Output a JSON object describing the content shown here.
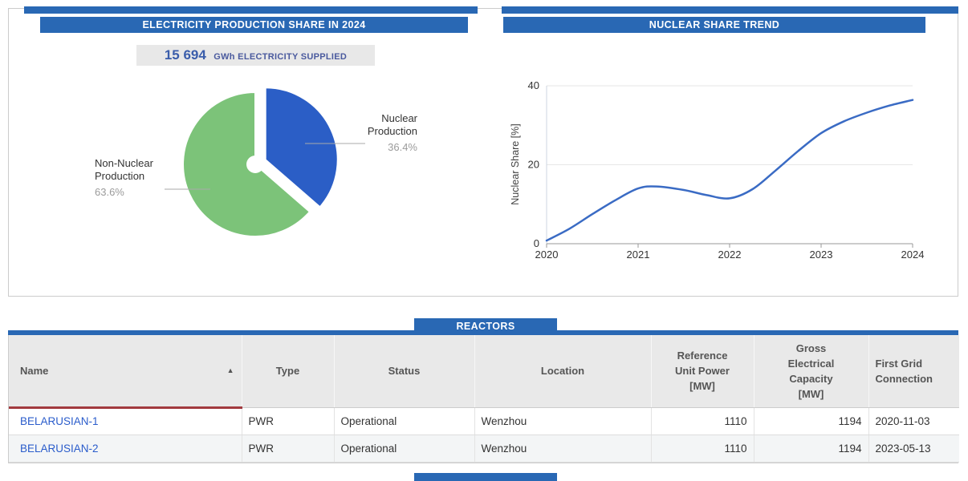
{
  "theme": {
    "header_blue": "#2968b4",
    "link_blue": "#2a5ccb",
    "pie_nuclear_color": "#2b5ec6",
    "pie_non_nuclear_color": "#7cc379",
    "trend_line_color": "#3a6bc4",
    "sorted_column_underline": "#a23a3f",
    "supplied_box_bg": "#e8e8e8"
  },
  "production_panel": {
    "title": "ELECTRICITY PRODUCTION SHARE IN 2024",
    "supplied_value": "15 694",
    "supplied_unit": "GWh ELECTRICITY SUPPLIED"
  },
  "trend_panel": {
    "title": "NUCLEAR SHARE TREND"
  },
  "chart_data": [
    {
      "type": "pie",
      "title": "ELECTRICITY PRODUCTION SHARE IN 2024",
      "subtitle": "15 694 GWh ELECTRICITY SUPPLIED",
      "slices": [
        {
          "label": "Nuclear Production",
          "label_lines": [
            "Nuclear",
            "Production"
          ],
          "value": 36.4,
          "pct_label": "36.4%",
          "color": "#2b5ec6",
          "exploded": true
        },
        {
          "label": "Non-Nuclear Production",
          "label_lines": [
            "Non-Nuclear",
            "Production"
          ],
          "value": 63.6,
          "pct_label": "63.6%",
          "color": "#7cc379",
          "exploded": false
        }
      ]
    },
    {
      "type": "line",
      "title": "NUCLEAR SHARE TREND",
      "xlabel": "",
      "ylabel": "Nuclear Share [%]",
      "ylim": [
        0,
        40
      ],
      "yticks": [
        0,
        20,
        40
      ],
      "xticks": [
        2020,
        2021,
        2022,
        2023,
        2024
      ],
      "grid": "horizontal",
      "legend": "none",
      "series": [
        {
          "name": "Nuclear Share [%]",
          "color": "#3a6bc4",
          "points": [
            [
              2020,
              0.8
            ],
            [
              2020.25,
              3.8
            ],
            [
              2020.5,
              7.5
            ],
            [
              2020.75,
              11
            ],
            [
              2021,
              14
            ],
            [
              2021.2,
              14.5
            ],
            [
              2021.5,
              13.6
            ],
            [
              2021.75,
              12.3
            ],
            [
              2022,
              11.5
            ],
            [
              2022.25,
              13.8
            ],
            [
              2022.5,
              18.5
            ],
            [
              2022.75,
              23.5
            ],
            [
              2023,
              28
            ],
            [
              2023.25,
              31
            ],
            [
              2023.5,
              33.2
            ],
            [
              2023.75,
              35
            ],
            [
              2024,
              36.4
            ]
          ]
        }
      ]
    }
  ],
  "reactors": {
    "title": "REACTORS",
    "sort_icon": "▲",
    "columns": [
      "Name",
      "Type",
      "Status",
      "Location",
      "Reference Unit Power [MW]",
      "Gross Electrical Capacity [MW]",
      "First Grid Connection"
    ],
    "rows": [
      {
        "name": "BELARUSIAN-1",
        "type": "PWR",
        "status": "Operational",
        "location": "Wenzhou",
        "reference_unit_power_mw": "1110",
        "gross_electrical_capacity_mw": "1194",
        "first_grid_connection": "2020-11-03"
      },
      {
        "name": "BELARUSIAN-2",
        "type": "PWR",
        "status": "Operational",
        "location": "Wenzhou",
        "reference_unit_power_mw": "1110",
        "gross_electrical_capacity_mw": "1194",
        "first_grid_connection": "2023-05-13"
      }
    ]
  }
}
